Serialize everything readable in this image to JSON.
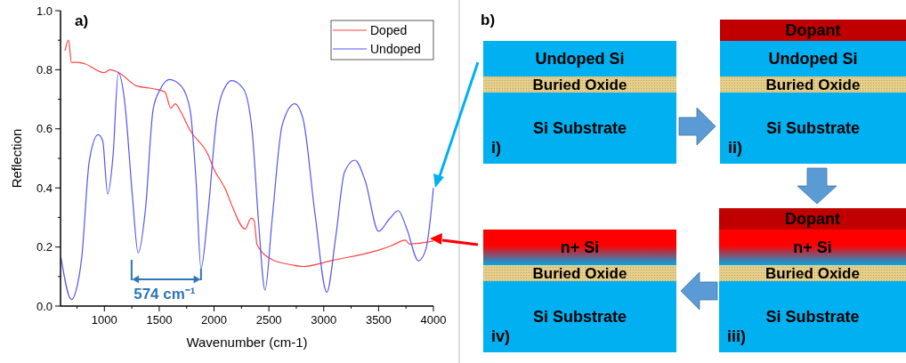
{
  "chart_data": [
    {
      "type": "line",
      "title": "a)",
      "xlabel": "Wavenumber (cm-1)",
      "ylabel": "Reflection",
      "xlim": [
        600,
        4000
      ],
      "ylim": [
        0,
        1
      ],
      "xticks": [
        {
          "value": 750,
          "label": null
        },
        1000,
        {
          "value": 1250,
          "label": null
        },
        1500,
        {
          "value": 1750,
          "label": null
        },
        2000,
        {
          "value": 2250,
          "label": null
        },
        2500,
        {
          "value": 2750,
          "label": null
        },
        3000,
        {
          "value": 3250,
          "label": null
        },
        3500,
        {
          "value": 3750,
          "label": null
        },
        4000
      ],
      "yticks": [
        {
          "value": 0,
          "label": "0.0"
        },
        {
          "value": 0.1,
          "label": null
        },
        0.2,
        {
          "value": 0.3,
          "label": null
        },
        0.4,
        {
          "value": 0.5,
          "label": null
        },
        0.6,
        {
          "value": 0.7,
          "label": null
        },
        0.8,
        {
          "value": 0.9,
          "label": null
        },
        {
          "value": 1,
          "label": "1.0"
        }
      ],
      "legend": "top right",
      "grid": false,
      "annotations": [
        {
          "text": "574 cm⁻¹",
          "x": 1881,
          "y": 0.127
        }
      ],
      "series": [
        {
          "name": "Doped",
          "color": "#ff4040",
          "x": [
            641,
            673,
            700,
            754,
            822,
            997,
            1051,
            1132,
            1295,
            1457,
            1551,
            1606,
            1646,
            1700,
            1781,
            1943,
            1998,
            2106,
            2160,
            2284,
            2338,
            2365,
            2392,
            2541,
            2703,
            2811,
            3082,
            3487,
            3622,
            3743,
            3784,
            4000
          ],
          "values": [
            0.865,
            0.9,
            0.825,
            0.825,
            0.82,
            0.79,
            0.8,
            0.79,
            0.745,
            0.735,
            0.725,
            0.67,
            0.685,
            0.655,
            0.595,
            0.514,
            0.464,
            0.394,
            0.343,
            0.261,
            0.298,
            0.29,
            0.208,
            0.155,
            0.14,
            0.134,
            0.155,
            0.188,
            0.205,
            0.223,
            0.21,
            0.22
          ]
        },
        {
          "name": "Undoped",
          "color": "#5555f0",
          "x": [
            605,
            700,
            740,
            795,
            862,
            943,
            984,
            1030,
            1079,
            1127,
            1187,
            1254,
            1308,
            1375,
            1444,
            1511,
            1592,
            1700,
            1781,
            1835,
            1881,
            1943,
            2024,
            2106,
            2160,
            2268,
            2349,
            2406,
            2465,
            2527,
            2622,
            2735,
            2811,
            2920,
            3028,
            3109,
            3190,
            3284,
            3378,
            3500,
            3594,
            3680,
            3756,
            3864,
            3932,
            4000
          ],
          "values": [
            0.163,
            0.022,
            0.05,
            0.17,
            0.49,
            0.58,
            0.56,
            0.38,
            0.51,
            0.79,
            0.685,
            0.38,
            0.18,
            0.33,
            0.665,
            0.735,
            0.767,
            0.745,
            0.665,
            0.43,
            0.127,
            0.31,
            0.635,
            0.745,
            0.763,
            0.735,
            0.585,
            0.283,
            0.054,
            0.283,
            0.614,
            0.685,
            0.634,
            0.313,
            0.047,
            0.233,
            0.454,
            0.494,
            0.424,
            0.253,
            0.293,
            0.323,
            0.263,
            0.153,
            0.193,
            0.4
          ]
        }
      ]
    },
    {
      "type": "other",
      "title": "b)",
      "annotations": [
        "Undoped Si",
        "Buried Oxide",
        "Si Substrate",
        "i)",
        "Dopant",
        "Undoped Si",
        "Buried Oxide",
        "Si Substrate",
        "ii)",
        "Dopant",
        "n+ Si",
        "Buried Oxide",
        "Si Substrate",
        "iii)",
        "n+ Si",
        "Buried Oxide",
        "Si Substrate",
        "iv)"
      ]
    }
  ]
}
